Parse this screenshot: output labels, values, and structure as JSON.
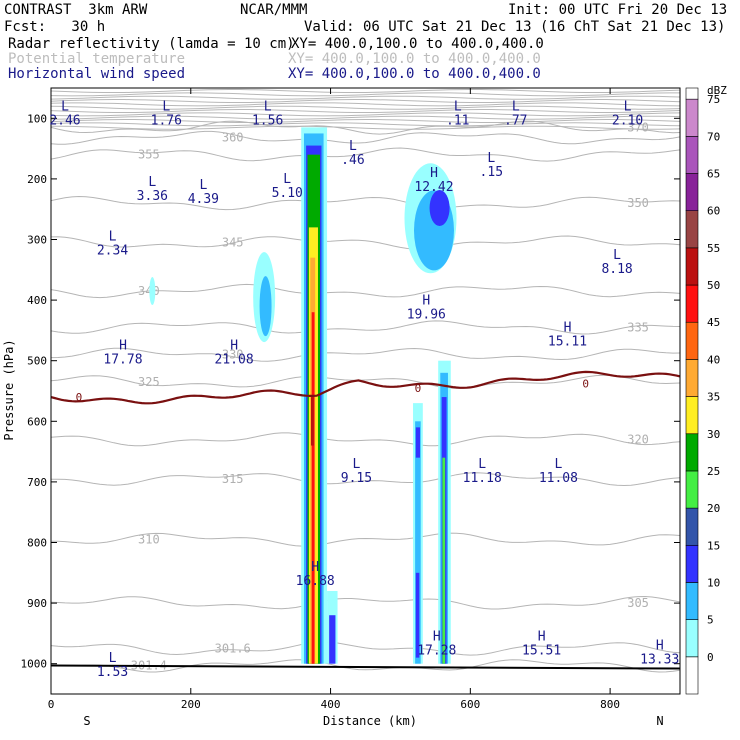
{
  "header": {
    "model": "CONTRAST  3km ARW",
    "org": "NCAR/MMM",
    "init": "Init: 00 UTC Fri 20 Dec 13",
    "fcst": "Fcst:   30 h",
    "valid": "Valid: 06 UTC Sat 21 Dec 13 (16 ChT Sat 21 Dec 13)",
    "fields": [
      {
        "name": "Radar reflectivity (lamda = 10 cm)",
        "xy": "XY= 400.0,100.0 to 400.0,400.0",
        "color": "#000000"
      },
      {
        "name": "Potential temperature",
        "xy": "XY= 400.0,100.0 to 400.0,400.0",
        "color": "#bdbdbd"
      },
      {
        "name": "Horizontal wind speed",
        "xy": "XY= 400.0,100.0 to 400.0,400.0",
        "color": "#1a1a8a"
      }
    ]
  },
  "chart_data": {
    "type": "cross-section contour",
    "xlabel": "Distance (km)",
    "ylabel": "Pressure (hPa)",
    "x_ticks": [
      0,
      200,
      400,
      600,
      800
    ],
    "y_ticks": [
      100,
      200,
      300,
      400,
      500,
      600,
      700,
      800,
      900,
      1000
    ],
    "xlim": [
      0,
      900
    ],
    "ylim": [
      1050,
      50
    ],
    "side_labels": {
      "left": "S",
      "right": "N"
    },
    "colorbar": {
      "unit": "dBZ",
      "ticks": [
        0,
        5,
        10,
        15,
        20,
        25,
        30,
        35,
        40,
        45,
        50,
        55,
        60,
        65,
        70,
        75
      ],
      "colors": [
        "#ffffff",
        "#99ffff",
        "#33bbff",
        "#3333ff",
        "#3355aa",
        "#44ee44",
        "#00aa00",
        "#ffee22",
        "#ffaa33",
        "#ff6611",
        "#ff1111",
        "#bb1111",
        "#994444",
        "#882299",
        "#aa55bb",
        "#cc88cc"
      ]
    },
    "theta_contours": [
      {
        "label": "370",
        "p": 115
      },
      {
        "label": "360",
        "p": 132
      },
      {
        "label": "355",
        "p": 160
      },
      {
        "label": "350",
        "p": 240
      },
      {
        "label": "345",
        "p": 305
      },
      {
        "label": "340",
        "p": 385
      },
      {
        "label": "335",
        "p": 445
      },
      {
        "label": "330",
        "p": 490
      },
      {
        "label": "325",
        "p": 535
      },
      {
        "label": "320",
        "p": 630
      },
      {
        "label": "315",
        "p": 695
      },
      {
        "label": "310",
        "p": 795
      },
      {
        "label": "305",
        "p": 900
      },
      {
        "label": "301.6",
        "p": 975
      },
      {
        "label": "301.4",
        "p": 1003
      }
    ],
    "freezing_level": {
      "label": "0",
      "p": 560
    },
    "wind_extrema": [
      {
        "type": "L",
        "value": "2.46",
        "x": 20,
        "p": 110
      },
      {
        "type": "L",
        "value": "1.76",
        "x": 165,
        "p": 110
      },
      {
        "type": "L",
        "value": "1.56",
        "x": 310,
        "p": 110
      },
      {
        "type": "L",
        "value": ".11",
        "x": 582,
        "p": 110
      },
      {
        "type": "L",
        "value": ".77",
        "x": 665,
        "p": 110
      },
      {
        "type": "L",
        "value": "2.10",
        "x": 825,
        "p": 110
      },
      {
        "type": "L",
        "value": ".46",
        "x": 432,
        "p": 175
      },
      {
        "type": "L",
        "value": ".15",
        "x": 630,
        "p": 195
      },
      {
        "type": "H",
        "value": "12.42",
        "x": 548,
        "p": 220
      },
      {
        "type": "L",
        "value": "3.36",
        "x": 145,
        "p": 235
      },
      {
        "type": "L",
        "value": "4.39",
        "x": 218,
        "p": 240
      },
      {
        "type": "L",
        "value": "5.10",
        "x": 338,
        "p": 230
      },
      {
        "type": "L",
        "value": "2.34",
        "x": 88,
        "p": 325
      },
      {
        "type": "L",
        "value": "8.18",
        "x": 810,
        "p": 355
      },
      {
        "type": "H",
        "value": "19.96",
        "x": 537,
        "p": 430
      },
      {
        "type": "H",
        "value": "15.11",
        "x": 739,
        "p": 475
      },
      {
        "type": "H",
        "value": "17.78",
        "x": 103,
        "p": 505
      },
      {
        "type": "H",
        "value": "21.08",
        "x": 262,
        "p": 505
      },
      {
        "type": "L",
        "value": "9.15",
        "x": 437,
        "p": 700
      },
      {
        "type": "L",
        "value": "11.18",
        "x": 617,
        "p": 700
      },
      {
        "type": "L",
        "value": "11.08",
        "x": 726,
        "p": 700
      },
      {
        "type": "H",
        "value": "16.88",
        "x": 378,
        "p": 870
      },
      {
        "type": "H",
        "value": "17.28",
        "x": 552,
        "p": 985
      },
      {
        "type": "H",
        "value": "15.51",
        "x": 702,
        "p": 985
      },
      {
        "type": "H",
        "value": "13.33",
        "x": 871,
        "p": 1000
      },
      {
        "type": "L",
        "value": "1.53",
        "x": 88,
        "p": 1020
      }
    ]
  }
}
